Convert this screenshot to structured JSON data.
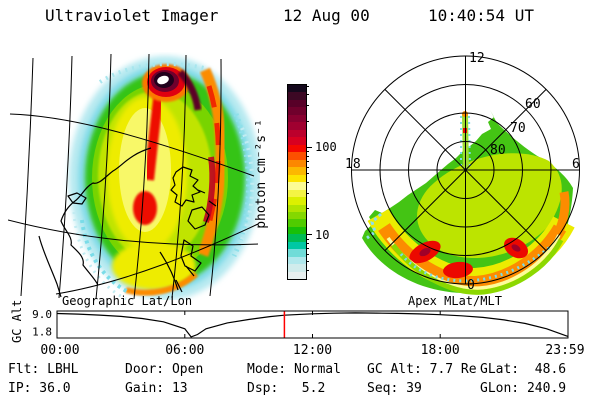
{
  "header": {
    "app_title": "Ultraviolet Imager",
    "date": "12 Aug 00",
    "time": "10:40:54 UT"
  },
  "panels": {
    "geographic": {
      "caption": "Geographic Lat/Lon"
    },
    "polar": {
      "caption": "Apex MLat/MLT",
      "mlt_top": "12",
      "mlt_left": "18",
      "mlt_right": "6",
      "mlt_bottom": "0",
      "mlat_60": "60",
      "mlat_70": "70",
      "mlat_80": "80"
    }
  },
  "colorbar": {
    "label": "photon cm⁻²s⁻¹",
    "scale": "log",
    "value_min": 3.2,
    "value_max": 525,
    "major_ticks": [
      {
        "value": 100,
        "label": "100"
      },
      {
        "value": 10,
        "label": "10"
      }
    ],
    "minor_tick_values": [
      4,
      5,
      6,
      7,
      8,
      9,
      20,
      30,
      40,
      50,
      60,
      70,
      80,
      90,
      200,
      300,
      400,
      500
    ],
    "colors": [
      "#14081c",
      "#3c0824",
      "#580028",
      "#70002c",
      "#880030",
      "#a00030",
      "#bc002c",
      "#d80020",
      "#f40800",
      "#fc5000",
      "#fc8800",
      "#fcb800",
      "#fce400",
      "#fcfc94",
      "#f4f444",
      "#dcf000",
      "#b0e400",
      "#84d800",
      "#50cc00",
      "#18c008",
      "#00bc54",
      "#00c8a4",
      "#70dcd8",
      "#b0e8ec",
      "#d0ecec",
      "#e8f0f0"
    ]
  },
  "timeline": {
    "ylabel": "GC Alt",
    "yticks": [
      "9.0",
      "1.8"
    ],
    "xticks": [
      "00:00",
      "06:00",
      "12:00",
      "18:00",
      "23:59"
    ],
    "marker_color": "#ff0000"
  },
  "status": {
    "columns": [
      [
        "Flt: LBHL",
        "IP: 36.0"
      ],
      [
        "Door: Open",
        "Gain: 13"
      ],
      [
        "Mode: Normal",
        "Dsp:   5.2"
      ],
      [
        "GC Alt: 7.7 Re",
        "Seq: 39"
      ],
      [
        "GLat:  48.6",
        "GLon: 240.9"
      ]
    ]
  },
  "chart_data": [
    {
      "type": "heatmap",
      "name": "uvi_geographic_image",
      "title": "Geographic Lat/Lon",
      "colorbar_label": "photon cm⁻²s⁻¹",
      "scale": "log",
      "colorbar_ticks": [
        10,
        100
      ],
      "description": "UV auroral image projected on geographic lat/lon grid over northwestern North America; oval disk of emission: cyan noise fringe (~3-5), green body (~10-30), yellow core band (~50), vertical red arc segments (~200) mid-disk, orange arc along right limb, saturated hotspot near top with white core, black/maroon halo (>500)."
    },
    {
      "type": "heatmap",
      "name": "uvi_apex_polar_image",
      "title": "Apex MLat/MLT",
      "projection": "magnetic latitude vs magnetic local time dial",
      "mlt_labels": [
        "12",
        "18",
        "6",
        "0"
      ],
      "mlat_rings": [
        80,
        70,
        60,
        50
      ],
      "description": "Auroral oval brightest (red/orange, 100-300 photon cm⁻²s⁻¹) near 60-70 MLat from ~19 MLT through midnight to ~05 MLT; diffuse green/yellow (~10-50) fills wedge poleward up to ~80 MLat toward 13 MLT; thin pale-yellow and green fringe equatorward of the oval; narrow emission strip along the 12 MLT meridian."
    },
    {
      "type": "line",
      "name": "gc_alt_vs_time",
      "ylabel": "GC Alt",
      "yscale": "log",
      "yticks": [
        9.0,
        1.8
      ],
      "xticks": [
        "00:00",
        "06:00",
        "12:00",
        "18:00",
        "23:59"
      ],
      "x_hours": [
        0,
        1,
        2,
        3,
        4,
        5,
        6,
        6.3,
        6.6,
        7,
        8,
        9,
        10,
        10.68,
        11.5,
        12,
        13,
        14,
        15,
        16,
        17,
        18,
        19,
        20,
        21,
        22,
        23,
        23.98
      ],
      "y_re": [
        9.0,
        8.5,
        7.8,
        6.9,
        5.7,
        4.2,
        2.2,
        1.05,
        1.3,
        2.2,
        3.8,
        5.2,
        6.8,
        7.7,
        8.4,
        8.8,
        9.3,
        9.5,
        9.4,
        9.1,
        8.7,
        8.1,
        7.3,
        6.3,
        5.0,
        3.6,
        2.2,
        1.1
      ],
      "marker_hours": 10.68,
      "marker_value_re": 7.7,
      "marker_label": "10:40:54 UT"
    }
  ]
}
